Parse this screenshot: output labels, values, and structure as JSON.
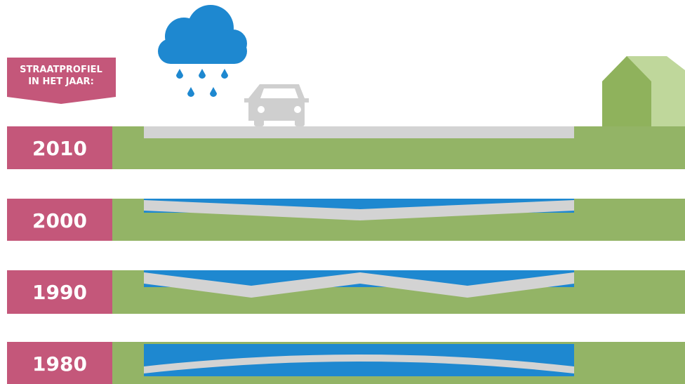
{
  "header": {
    "lines": [
      "STRAATPROFIEL",
      "IN HET JAAR:"
    ]
  },
  "rows": [
    {
      "year": "2010"
    },
    {
      "year": "2000"
    },
    {
      "year": "1990"
    },
    {
      "year": "1980"
    }
  ]
}
